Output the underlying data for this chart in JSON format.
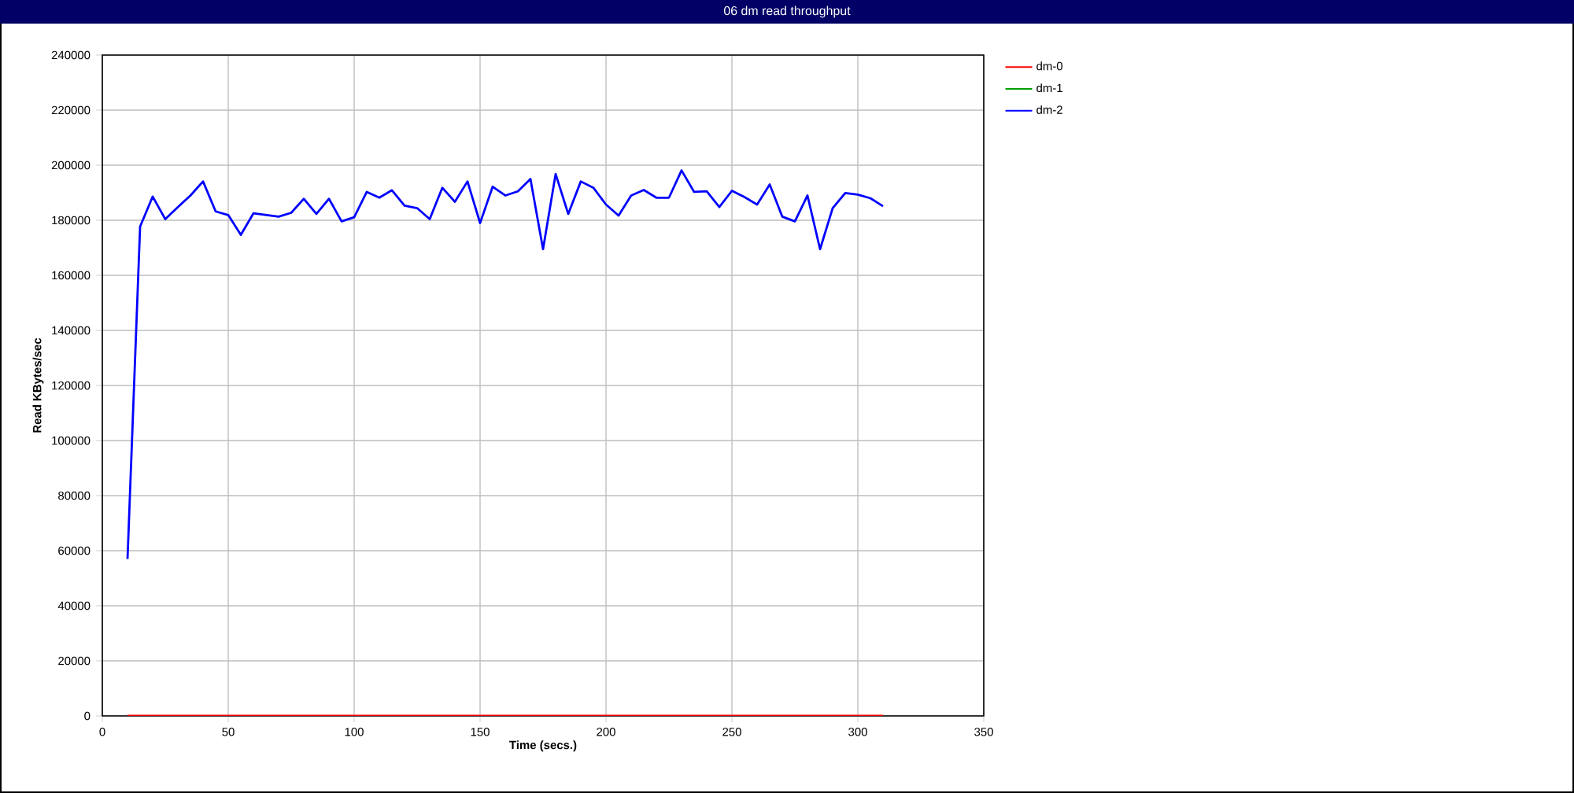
{
  "chart_data": {
    "type": "line",
    "title": "06 dm read throughput",
    "xlabel": "Time (secs.)",
    "ylabel": "Read KBytes/sec",
    "x": [
      10,
      15,
      20,
      25,
      30,
      35,
      40,
      45,
      50,
      55,
      60,
      65,
      70,
      75,
      80,
      85,
      90,
      95,
      100,
      105,
      110,
      115,
      120,
      125,
      130,
      135,
      140,
      145,
      150,
      155,
      160,
      165,
      170,
      175,
      180,
      185,
      190,
      195,
      200,
      205,
      210,
      215,
      220,
      225,
      230,
      235,
      240,
      245,
      250,
      255,
      260,
      265,
      270,
      275,
      280,
      285,
      290,
      295,
      300,
      305,
      310
    ],
    "series": [
      {
        "name": "dm-0",
        "color": "#ff0000",
        "values": [
          0,
          0,
          0,
          0,
          0,
          0,
          0,
          0,
          0,
          0,
          0,
          0,
          0,
          0,
          0,
          0,
          0,
          0,
          0,
          0,
          0,
          0,
          0,
          0,
          0,
          0,
          0,
          0,
          0,
          0,
          0,
          0,
          0,
          0,
          0,
          0,
          0,
          0,
          0,
          0,
          0,
          0,
          0,
          0,
          0,
          0,
          0,
          0,
          0,
          0,
          0,
          0,
          0,
          0,
          0,
          0,
          0,
          0,
          0,
          0,
          0
        ]
      },
      {
        "name": "dm-1",
        "color": "#00a000",
        "values": [
          null,
          null,
          null,
          null,
          null,
          null,
          null,
          null,
          null,
          null,
          null,
          null,
          null,
          null,
          null,
          null,
          null,
          null,
          null,
          null,
          null,
          null,
          null,
          null,
          null,
          null,
          null,
          null,
          null,
          null,
          null,
          null,
          null,
          null,
          null,
          null,
          null,
          null,
          null,
          null,
          null,
          null,
          null,
          null,
          null,
          null,
          null,
          null,
          null,
          null,
          null,
          null,
          null,
          null,
          null,
          null,
          null,
          null,
          null,
          null,
          null
        ]
      },
      {
        "name": "dm-2",
        "color": "#0000ff",
        "values": [
          57000,
          177700,
          188600,
          180400,
          184800,
          189000,
          194100,
          183200,
          181900,
          174700,
          182500,
          181900,
          181300,
          182700,
          187800,
          182300,
          187800,
          179600,
          181100,
          190300,
          188200,
          190900,
          185300,
          184400,
          180400,
          191800,
          186700,
          194100,
          179000,
          192200,
          189000,
          190500,
          195000,
          169500,
          196800,
          182300,
          194100,
          191800,
          185700,
          181700,
          189000,
          191000,
          188200,
          188200,
          198100,
          190300,
          190500,
          184800,
          190700,
          188400,
          185700,
          193000,
          181300,
          179600,
          189000,
          169500,
          184400,
          189900,
          189300,
          188000,
          185100
        ]
      }
    ],
    "xlim": [
      0,
      350
    ],
    "ylim": [
      0,
      240000
    ],
    "xticks": [
      0,
      50,
      100,
      150,
      200,
      250,
      300,
      350
    ],
    "yticks": [
      0,
      20000,
      40000,
      60000,
      80000,
      100000,
      120000,
      140000,
      160000,
      180000,
      200000,
      220000,
      240000
    ],
    "grid": true,
    "legend": "top right"
  }
}
